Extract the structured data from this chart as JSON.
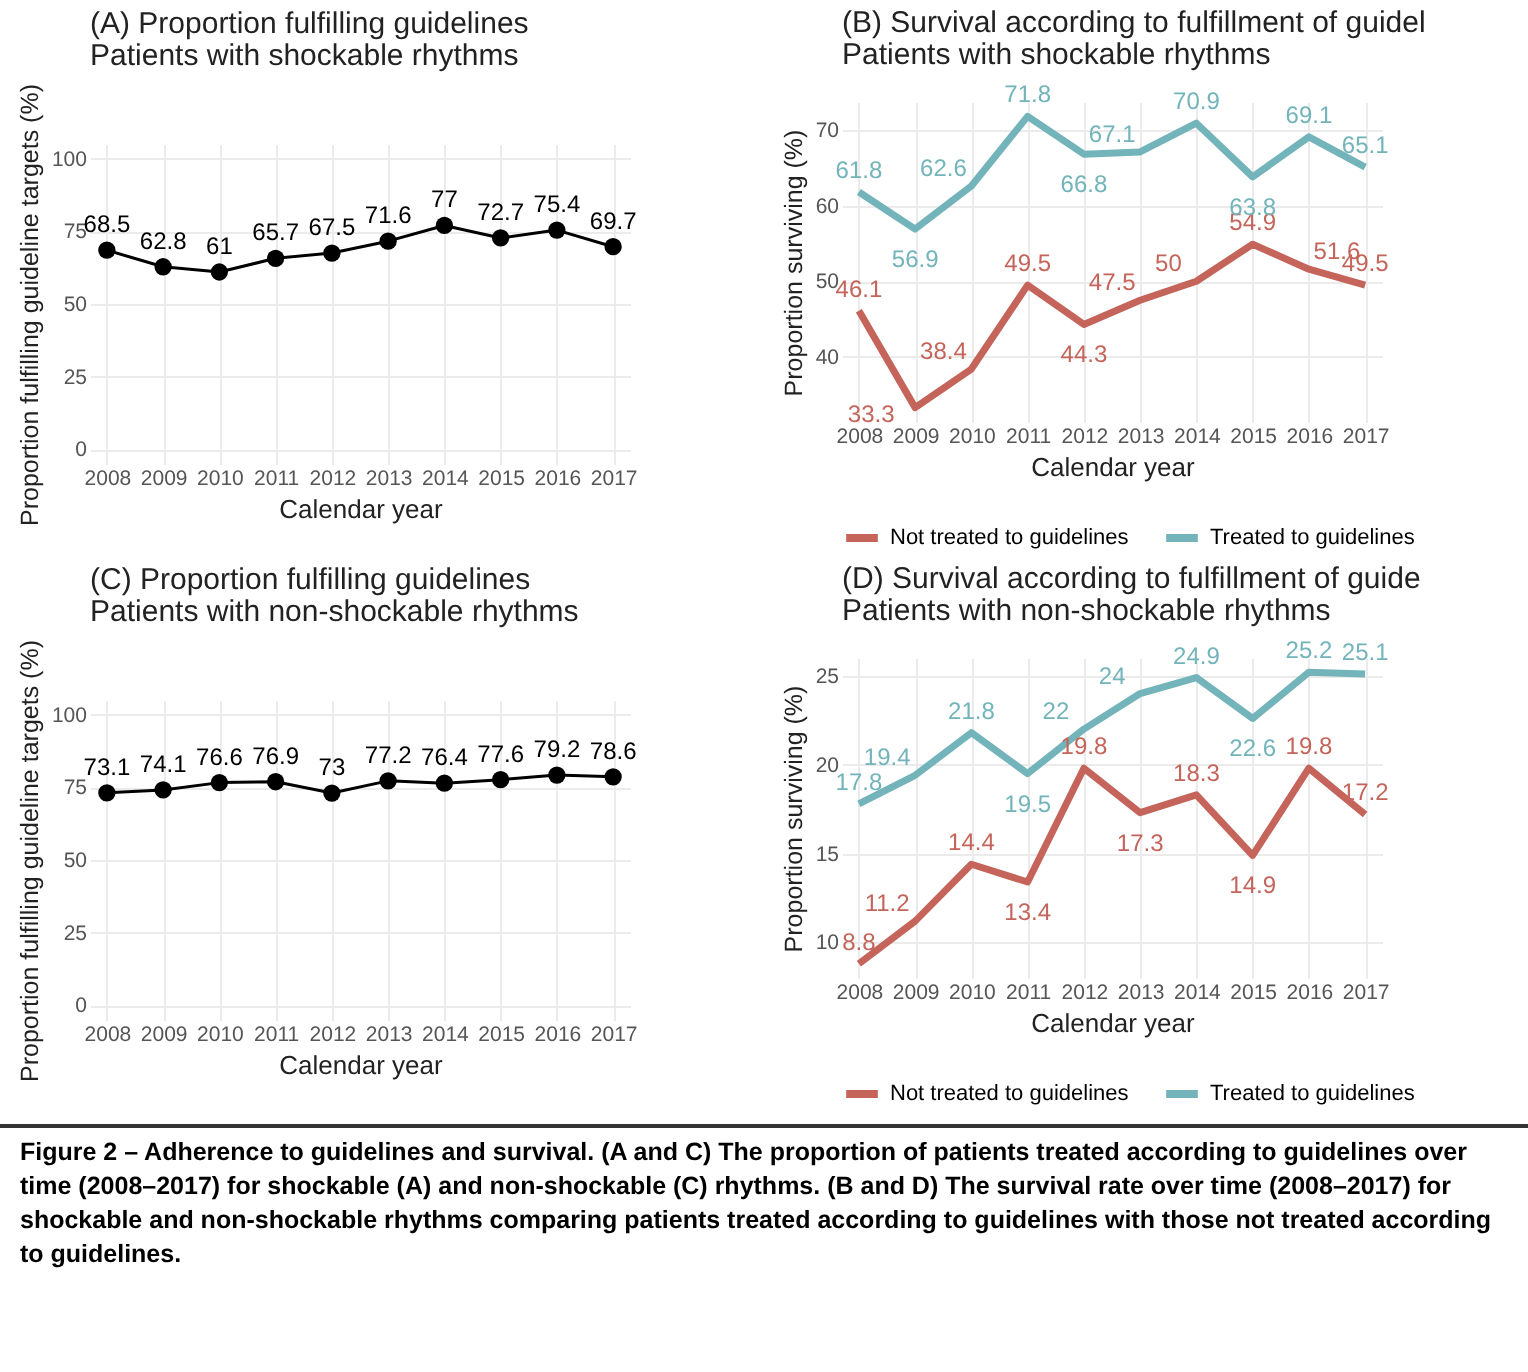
{
  "chart_data": [
    {
      "type": "line",
      "title": "(A) Proportion fulfilling guidelines",
      "subtitle": "Patients with shockable rhythms",
      "xlabel": "Calendar year",
      "ylabel": "Proportion fulfilling guideline targets (%)",
      "categories": [
        "2008",
        "2009",
        "2010",
        "2011",
        "2012",
        "2013",
        "2014",
        "2015",
        "2016",
        "2017"
      ],
      "values": [
        68.5,
        62.8,
        61,
        65.7,
        67.5,
        71.6,
        77,
        72.7,
        75.4,
        69.7
      ],
      "color": "#000000",
      "ylim": [
        -5,
        105
      ],
      "yticks": [
        0,
        25,
        50,
        75,
        100
      ],
      "grid": true,
      "marker": "circle",
      "data_labels": true
    },
    {
      "type": "line",
      "title": "(B) Survival according to fulfillment of guidel",
      "subtitle": "Patients with shockable rhythms",
      "xlabel": "Calendar year",
      "ylabel": "Proportion surviving (%)",
      "categories": [
        "2008",
        "2009",
        "2010",
        "2011",
        "2012",
        "2013",
        "2014",
        "2015",
        "2016",
        "2017"
      ],
      "series": [
        {
          "name": "Not treated to guidelines",
          "color": "#c4645a",
          "values": [
            46.1,
            33.3,
            38.4,
            49.5,
            44.3,
            47.5,
            50,
            54.9,
            51.6,
            49.5
          ]
        },
        {
          "name": "Treated to guidelines",
          "color": "#72b4ba",
          "values": [
            61.8,
            56.9,
            62.6,
            71.8,
            66.8,
            67.1,
            70.9,
            63.8,
            69.1,
            65.1
          ]
        }
      ],
      "ylim": [
        31.4,
        73.7
      ],
      "yticks": [
        40,
        50,
        60,
        70
      ],
      "grid": true,
      "legend": "bottom",
      "data_labels": true
    },
    {
      "type": "line",
      "title": "(C) Proportion fulfilling guidelines",
      "subtitle": "Patients with non-shockable rhythms",
      "xlabel": "Calendar year",
      "ylabel": "Proportion fulfilling guideline targets (%)",
      "categories": [
        "2008",
        "2009",
        "2010",
        "2011",
        "2012",
        "2013",
        "2014",
        "2015",
        "2016",
        "2017"
      ],
      "values": [
        73.1,
        74.1,
        76.6,
        76.9,
        73,
        77.2,
        76.4,
        77.6,
        79.2,
        78.6
      ],
      "color": "#000000",
      "ylim": [
        -5,
        105
      ],
      "yticks": [
        0,
        25,
        50,
        75,
        100
      ],
      "grid": true,
      "marker": "circle",
      "data_labels": true
    },
    {
      "type": "line",
      "title": "(D) Survival according to fulfillment of guide",
      "subtitle": "Patients with non-shockable rhythms",
      "xlabel": "Calendar year",
      "ylabel": "Proportion surviving (%)",
      "categories": [
        "2008",
        "2009",
        "2010",
        "2011",
        "2012",
        "2013",
        "2014",
        "2015",
        "2016",
        "2017"
      ],
      "series": [
        {
          "name": "Not treated to guidelines",
          "color": "#c4645a",
          "values": [
            8.8,
            11.2,
            14.4,
            13.4,
            19.8,
            17.3,
            18.3,
            14.9,
            19.8,
            17.2
          ]
        },
        {
          "name": "Treated to guidelines",
          "color": "#72b4ba",
          "values": [
            17.8,
            19.4,
            21.8,
            19.5,
            22,
            24,
            24.9,
            22.6,
            25.2,
            25.1
          ]
        }
      ],
      "ylim": [
        8,
        26
      ],
      "yticks": [
        10,
        15,
        20,
        25
      ],
      "grid": true,
      "legend": "bottom",
      "data_labels": true,
      "annotations": [
        "Figure 2 – Adherence to guidelines and survival. (A and C) The proportion of patients treated according to guidelines over time (2008–2017) for shockable (A) and non-shockable (C) rhythms. (B and D) The survival rate over time (2008–2017) for shockable and non-shockable rhythms comparing patients treated according to guidelines with those not treated according to guidelines."
      ]
    }
  ]
}
